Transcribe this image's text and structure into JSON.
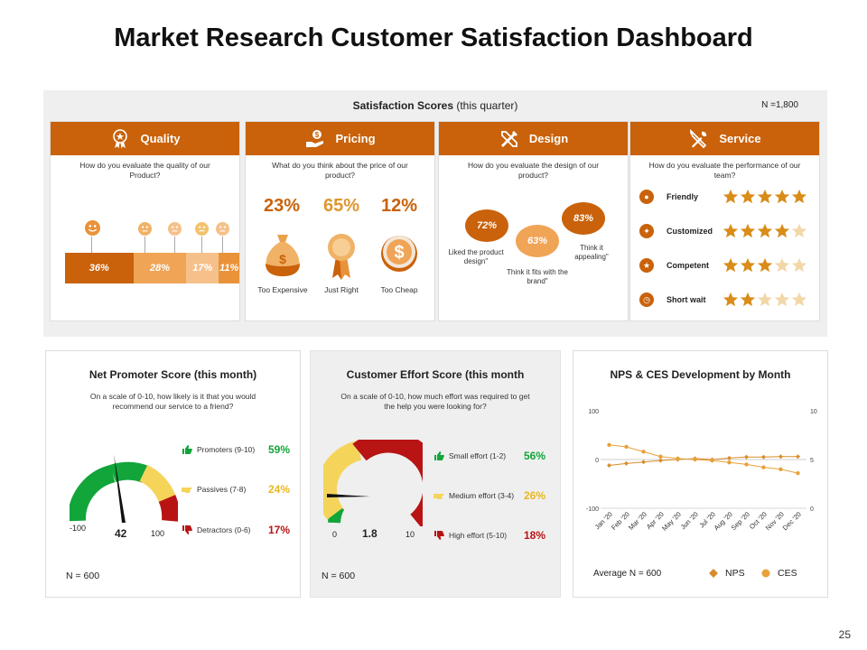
{
  "title": "Market Research Customer Satisfaction Dashboard",
  "page_number": "25",
  "colors": {
    "accent": "#c9620a",
    "light_orange": "#f0a456",
    "pale_orange": "#f6c08a",
    "green": "#12a53a",
    "yellow": "#f5d45a",
    "red": "#b81414",
    "nps_line": "#d98c2a",
    "ces_line": "#e8a13a"
  },
  "satisfaction": {
    "title_bold": "Satisfaction Scores",
    "title_rest": " (this quarter)",
    "n": "N =1,800",
    "quality": {
      "header": "Quality",
      "icon": "award-icon",
      "question": "How do you evaluate the quality of our Product?",
      "segments": [
        {
          "label": "36%",
          "value": 36
        },
        {
          "label": "28%",
          "value": 28
        },
        {
          "label": "17%",
          "value": 17
        },
        {
          "label": "11%",
          "value": 11
        }
      ]
    },
    "pricing": {
      "header": "Pricing",
      "icon": "money-hand-icon",
      "question": "What do you think about the price of our product?",
      "items": [
        {
          "pct": "23%",
          "label": "Too Expensive",
          "value": 23
        },
        {
          "pct": "65%",
          "label": "Just Right",
          "value": 65
        },
        {
          "pct": "12%",
          "label": "Too Cheap",
          "value": 12
        }
      ]
    },
    "design": {
      "header": "Design",
      "icon": "design-tools-icon",
      "question": "How do you evaluate the design of our product?",
      "items": [
        {
          "pct": "72%",
          "label": "Liked the product design\"",
          "value": 72
        },
        {
          "pct": "63%",
          "label": "Think it fits with the brand\"",
          "value": 63
        },
        {
          "pct": "83%",
          "label": "Think it appealing\"",
          "value": 83
        }
      ]
    },
    "service": {
      "header": "Service",
      "icon": "tools-icon",
      "question": "How do you evaluate the performance of our team?",
      "items": [
        {
          "label": "Friendly",
          "stars": 5
        },
        {
          "label": "Customized",
          "stars": 4
        },
        {
          "label": "Competent",
          "stars": 3
        },
        {
          "label": "Short wait",
          "stars": 2
        }
      ]
    }
  },
  "nps": {
    "title": "Net Promoter Score (this month)",
    "question": "On a scale of 0-10, how likely is it that you would recommend our service to a friend?",
    "min_label": "-100",
    "max_label": "100",
    "value_label": "42",
    "value": 42,
    "legend": [
      {
        "label": "Promoters (9-10)",
        "pct": "59%",
        "value": 59
      },
      {
        "label": "Passives (7-8)",
        "pct": "24%",
        "value": 24
      },
      {
        "label": "Detractors (0-6)",
        "pct": "17%",
        "value": 17
      }
    ],
    "n": "N = 600"
  },
  "ces": {
    "title": "Customer Effort Score (this month",
    "question": "On a scale of 0-10, how much effort was required to get the help you were looking for?",
    "min_label": "0",
    "max_label": "10",
    "value_label": "1.8",
    "value": 1.8,
    "legend": [
      {
        "label": "Small effort (1-2)",
        "pct": "56%",
        "value": 56
      },
      {
        "label": "Medium effort (3-4)",
        "pct": "26%",
        "value": 26
      },
      {
        "label": "High effort (5-10)",
        "pct": "18%",
        "value": 18
      }
    ],
    "n": "N = 600"
  },
  "chart_data": {
    "type": "line",
    "title": "NPS & CES Development  by Month",
    "categories": [
      "Jan '20",
      "Feb '20",
      "Mar '20",
      "Apr '20",
      "May '20",
      "Jun '20",
      "Jul '20",
      "Aug '20",
      "Sep '20",
      "Oct '20",
      "Nov '20",
      "Dec '20"
    ],
    "left_axis": {
      "ticks": [
        "100",
        "0",
        "-100"
      ],
      "range": [
        -100,
        100
      ]
    },
    "right_axis": {
      "ticks": [
        "10",
        "5",
        "0"
      ],
      "range": [
        0,
        10
      ]
    },
    "series": [
      {
        "name": "NPS",
        "axis": "left",
        "marker": "diamond",
        "values": [
          -12,
          -8,
          -5,
          -2,
          0,
          2,
          0,
          3,
          5,
          5,
          6,
          6
        ]
      },
      {
        "name": "CES",
        "axis": "right",
        "marker": "circle",
        "values": [
          6.5,
          6.3,
          5.8,
          5.3,
          5.1,
          5.0,
          4.9,
          4.7,
          4.5,
          4.2,
          4.0,
          3.6
        ]
      }
    ],
    "average_label": "Average N = 600"
  }
}
